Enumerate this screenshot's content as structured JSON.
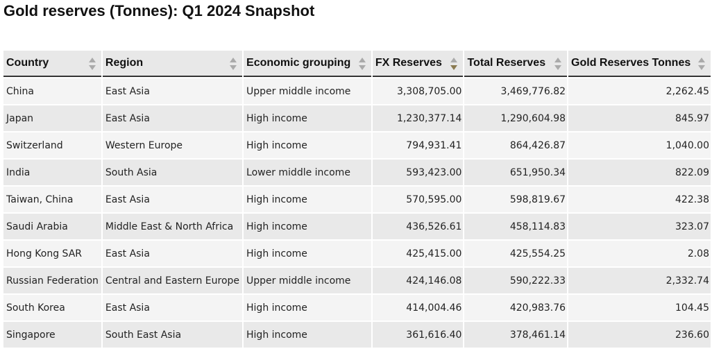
{
  "header": {
    "title": "Gold reserves (Tonnes): Q1 2024 Snapshot"
  },
  "table": {
    "columns": [
      "Country",
      "Region",
      "Economic grouping",
      "FX Reserves",
      "Total Reserves",
      "Gold Reserves Tonnes"
    ],
    "numeric_columns": [
      3,
      4,
      5
    ],
    "sort": {
      "column": 3,
      "direction": "descending"
    },
    "rows": [
      [
        "China",
        "East Asia",
        "Upper middle income",
        "3,308,705.00",
        "3,469,776.82",
        "2,262.45"
      ],
      [
        "Japan",
        "East Asia",
        "High income",
        "1,230,377.14",
        "1,290,604.98",
        "845.97"
      ],
      [
        "Switzerland",
        "Western Europe",
        "High income",
        "794,931.41",
        "864,426.87",
        "1,040.00"
      ],
      [
        "India",
        "South Asia",
        "Lower middle income",
        "593,423.00",
        "651,950.34",
        "822.09"
      ],
      [
        "Taiwan, China",
        "East Asia",
        "High income",
        "570,595.00",
        "598,819.67",
        "422.38"
      ],
      [
        "Saudi Arabia",
        "Middle East & North Africa",
        "High income",
        "436,526.61",
        "458,114.83",
        "323.07"
      ],
      [
        "Hong Kong SAR",
        "East Asia",
        "High income",
        "425,415.00",
        "425,554.25",
        "2.08"
      ],
      [
        "Russian Federation",
        "Central and Eastern Europe",
        "Upper middle income",
        "424,146.08",
        "590,222.33",
        "2,332.74"
      ],
      [
        "South Korea",
        "East Asia",
        "High income",
        "414,004.46",
        "420,983.76",
        "104.45"
      ],
      [
        "Singapore",
        "South East Asia",
        "High income",
        "361,616.40",
        "378,461.14",
        "236.60"
      ]
    ]
  }
}
